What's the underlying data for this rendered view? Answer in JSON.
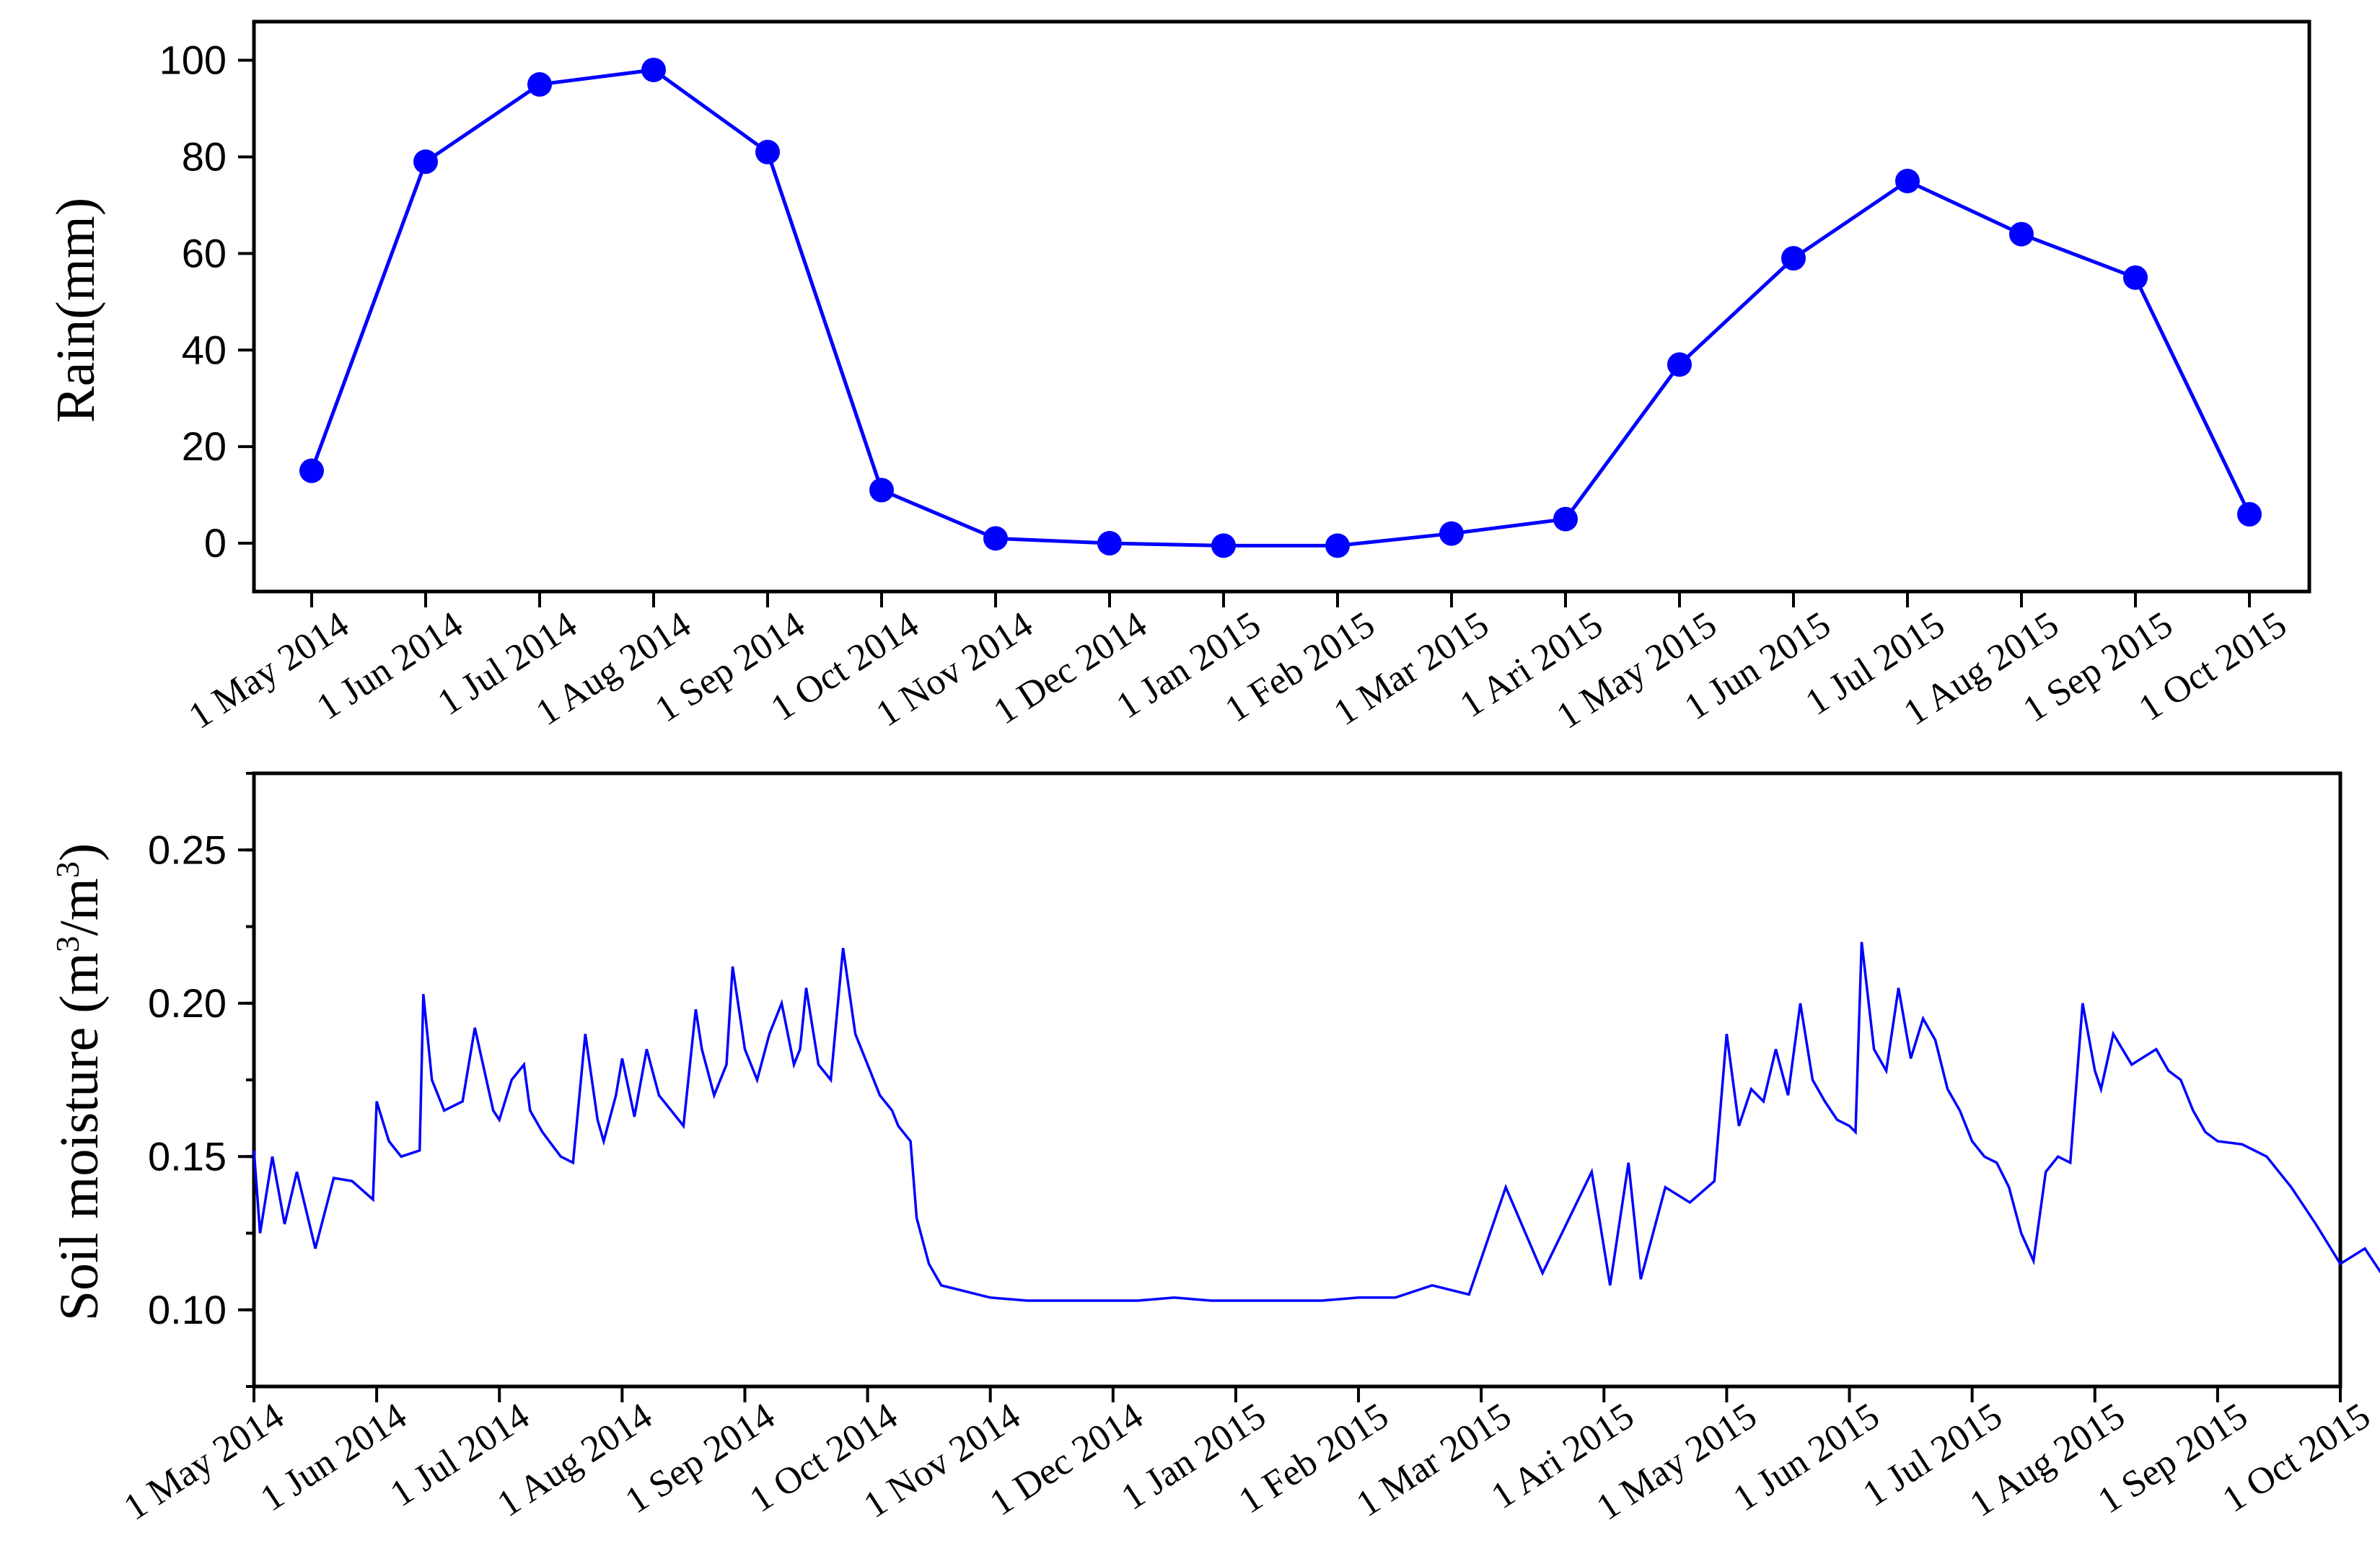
{
  "colors": {
    "series": "#0000ff",
    "axis": "#000000"
  },
  "chart_data": [
    {
      "type": "line",
      "ylabel": "Rain(mm)",
      "ylim": [
        -10,
        108
      ],
      "yticks": [
        0,
        20,
        40,
        60,
        80,
        100
      ],
      "ytick_labels": [
        "0",
        "20",
        "40",
        "60",
        "80",
        "100"
      ],
      "grid": false,
      "markers": true,
      "x": [
        "1 May 2014",
        "1 Jun 2014",
        "1 Jul 2014",
        "1 Aug 2014",
        "1 Sep 2014",
        "1 Oct 2014",
        "1 Nov 2014",
        "1 Dec 2014",
        "1 Jan 2015",
        "1 Feb 2015",
        "1 Mar 2015",
        "1 Ari 2015",
        "1 May 2015",
        "1 Jun 2015",
        "1 Jul 2015",
        "1 Aug 2015",
        "1 Sep 2015",
        "1 Oct 2015"
      ],
      "series": [
        {
          "values": [
            15,
            79,
            95,
            98,
            81,
            11,
            1,
            0,
            -0.5,
            -0.5,
            2,
            5,
            37,
            59,
            75,
            64,
            55,
            6
          ]
        }
      ]
    },
    {
      "type": "line",
      "ylabel": "Soil moisture (m",
      "ylabel_sup1": "3",
      "ylabel_mid": "/m",
      "ylabel_sup2": "3",
      "ylabel_end": ")",
      "ylim": [
        0.075,
        0.275
      ],
      "yticks": [
        0.1,
        0.15,
        0.2,
        0.25
      ],
      "ytick_labels": [
        "0.10",
        "0.15",
        "0.20",
        "0.25"
      ],
      "grid": false,
      "x_ticks": [
        "1 May 2014",
        "1 Jun 2014",
        "1 Jul 2014",
        "1 Aug 2014",
        "1 Sep 2014",
        "1 Oct 2014",
        "1 Nov 2014",
        "1 Dec 2014",
        "1 Jan 2015",
        "1 Feb 2015",
        "1 Mar 2015",
        "1 Ari 2015",
        "1 May 2015",
        "1 Jun 2015",
        "1 Jul 2015",
        "1 Aug 2015",
        "1 Sep 2015",
        "1 Oct 2015"
      ],
      "series": [
        {
          "x": [
            0,
            0.05,
            0.15,
            0.25,
            0.35,
            0.5,
            0.65,
            0.8,
            0.97,
            1.0,
            1.1,
            1.2,
            1.35,
            1.38,
            1.45,
            1.55,
            1.7,
            1.8,
            1.95,
            2.0,
            2.1,
            2.2,
            2.25,
            2.35,
            2.5,
            2.6,
            2.7,
            2.8,
            2.85,
            2.95,
            3.0,
            3.1,
            3.2,
            3.3,
            3.4,
            3.5,
            3.6,
            3.65,
            3.75,
            3.85,
            3.9,
            4.0,
            4.1,
            4.2,
            4.3,
            4.4,
            4.45,
            4.5,
            4.6,
            4.7,
            4.8,
            4.9,
            5.0,
            5.1,
            5.2,
            5.25,
            5.35,
            5.4,
            5.5,
            5.6,
            6.0,
            6.3,
            6.6,
            6.9,
            7.2,
            7.5,
            7.8,
            8.1,
            8.4,
            8.7,
            9.0,
            9.3,
            9.6,
            9.9,
            10.2,
            10.5,
            10.9,
            11.05,
            11.2,
            11.3,
            11.5,
            11.7,
            11.9,
            12.0,
            12.1,
            12.2,
            12.3,
            12.4,
            12.5,
            12.6,
            12.7,
            12.8,
            12.9,
            13.0,
            13.05,
            13.1,
            13.2,
            13.3,
            13.4,
            13.5,
            13.6,
            13.7,
            13.8,
            13.9,
            14.0,
            14.1,
            14.2,
            14.3,
            14.4,
            14.5,
            14.6,
            14.7,
            14.8,
            14.9,
            15.0,
            15.05,
            15.15,
            15.3,
            15.5,
            15.6,
            15.7,
            15.8,
            15.9,
            16.0,
            16.2,
            16.4,
            16.6,
            16.8,
            17.0,
            17.2,
            17.4,
            17.5
          ],
          "values": [
            0.152,
            0.125,
            0.15,
            0.128,
            0.145,
            0.12,
            0.143,
            0.142,
            0.136,
            0.168,
            0.155,
            0.15,
            0.152,
            0.203,
            0.175,
            0.165,
            0.168,
            0.192,
            0.165,
            0.162,
            0.175,
            0.18,
            0.165,
            0.158,
            0.15,
            0.148,
            0.19,
            0.162,
            0.155,
            0.17,
            0.182,
            0.163,
            0.185,
            0.17,
            0.165,
            0.16,
            0.198,
            0.185,
            0.17,
            0.18,
            0.212,
            0.185,
            0.175,
            0.19,
            0.2,
            0.18,
            0.185,
            0.205,
            0.18,
            0.175,
            0.218,
            0.19,
            0.18,
            0.17,
            0.165,
            0.16,
            0.155,
            0.13,
            0.115,
            0.108,
            0.104,
            0.103,
            0.103,
            0.103,
            0.103,
            0.104,
            0.103,
            0.103,
            0.103,
            0.103,
            0.104,
            0.104,
            0.108,
            0.105,
            0.14,
            0.112,
            0.145,
            0.108,
            0.148,
            0.11,
            0.14,
            0.135,
            0.142,
            0.19,
            0.16,
            0.172,
            0.168,
            0.185,
            0.17,
            0.2,
            0.175,
            0.168,
            0.162,
            0.16,
            0.158,
            0.22,
            0.185,
            0.178,
            0.205,
            0.182,
            0.195,
            0.188,
            0.172,
            0.165,
            0.155,
            0.15,
            0.148,
            0.14,
            0.125,
            0.116,
            0.145,
            0.15,
            0.148,
            0.2,
            0.178,
            0.172,
            0.19,
            0.18,
            0.185,
            0.178,
            0.175,
            0.165,
            0.158,
            0.155,
            0.154,
            0.15,
            0.14,
            0.128,
            0.115,
            0.12,
            0.108,
            0.12
          ]
        }
      ]
    }
  ]
}
